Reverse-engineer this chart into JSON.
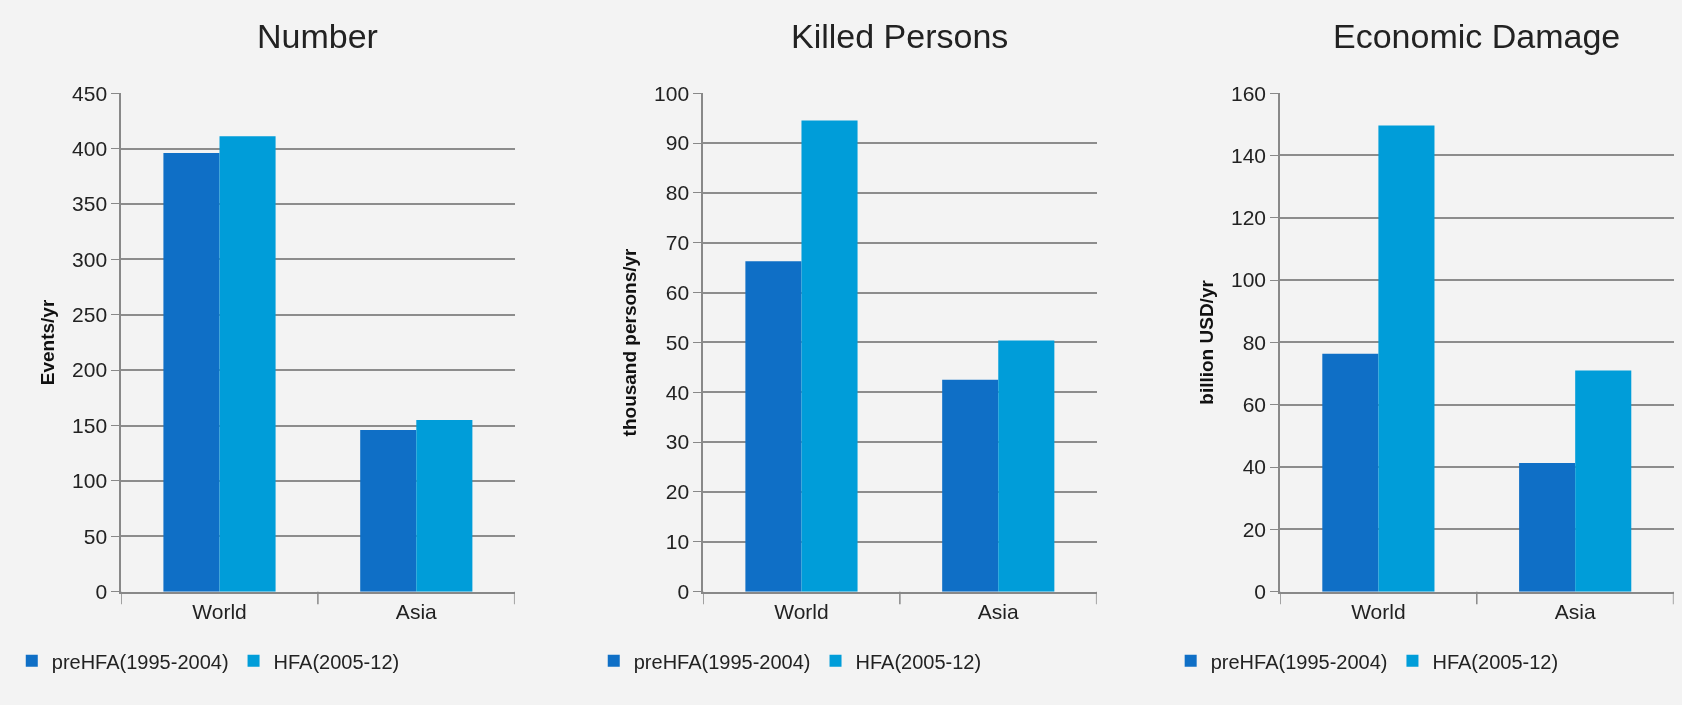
{
  "chart_data": [
    {
      "type": "bar",
      "title": "Number",
      "ylabel": "Events/yr",
      "categories": [
        "World",
        "Asia"
      ],
      "series": [
        {
          "name": "preHFA(1995-2004)",
          "color": "#0f6fc6",
          "values": [
            396,
            146
          ]
        },
        {
          "name": "HFA(2005-12)",
          "color": "#009dd9",
          "values": [
            411,
            155
          ]
        }
      ],
      "ylim": [
        0,
        450
      ],
      "yticks": [
        0,
        50,
        100,
        150,
        200,
        250,
        300,
        350,
        400,
        450
      ],
      "grid": "y",
      "legend": "bottom"
    },
    {
      "type": "bar",
      "title": "Killed Persons",
      "ylabel": "thousand persons/yr",
      "categories": [
        "World",
        "Asia"
      ],
      "series": [
        {
          "name": "preHFA(1995-2004)",
          "color": "#0f6fc6",
          "values": [
            66.3,
            42.5
          ]
        },
        {
          "name": "HFA(2005-12)",
          "color": "#009dd9",
          "values": [
            94.5,
            50.4
          ]
        }
      ],
      "ylim": [
        0,
        100
      ],
      "yticks": [
        0,
        10,
        20,
        30,
        40,
        50,
        60,
        70,
        80,
        90,
        100
      ],
      "grid": "y",
      "legend": "bottom"
    },
    {
      "type": "bar",
      "title": "Economic Damage",
      "ylabel": "billion USD/yr",
      "categories": [
        "World",
        "Asia"
      ],
      "series": [
        {
          "name": "preHFA(1995-2004)",
          "color": "#0f6fc6",
          "values": [
            76.4,
            41.3
          ]
        },
        {
          "name": "HFA(2005-12)",
          "color": "#009dd9",
          "values": [
            149.6,
            71
          ]
        }
      ],
      "ylim": [
        0,
        160
      ],
      "yticks": [
        0,
        20,
        40,
        60,
        80,
        100,
        120,
        140,
        160
      ],
      "grid": "y",
      "legend": "bottom"
    }
  ]
}
